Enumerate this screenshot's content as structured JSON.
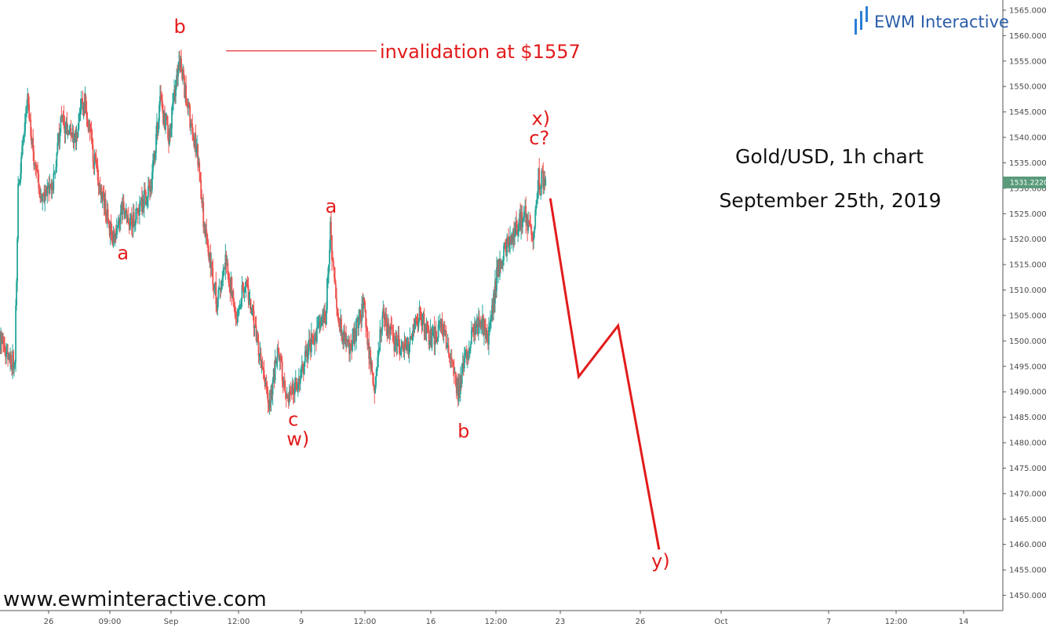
{
  "brand": {
    "logo_text": "EWM Interactive",
    "website": "www.ewminteractive.com"
  },
  "info": {
    "line1": "Gold/USD, 1h chart",
    "line2": "September 25th, 2019"
  },
  "colors": {
    "up": "#26a69a",
    "down": "#ef5350",
    "projection": "#e31b1b",
    "annotation": "#e31b1b",
    "price_tag": "#5a9a7a",
    "axis": "#555555"
  },
  "chart_data": {
    "type": "candlestick",
    "symbol": "Gold/USD",
    "timeframe": "1h",
    "ylim": [
      1447,
      1567
    ],
    "xlim": [
      "2019-08-23",
      "2019-10-15"
    ],
    "y_tick_labels": [
      "1565.0000",
      "1560.0000",
      "1555.0000",
      "1550.0000",
      "1545.0000",
      "1540.0000",
      "1535.0000",
      "1530.0000",
      "1525.0000",
      "1520.0000",
      "1515.0000",
      "1510.0000",
      "1505.0000",
      "1500.0000",
      "1495.0000",
      "1490.0000",
      "1485.0000",
      "1480.0000",
      "1475.0000",
      "1470.0000",
      "1465.0000",
      "1460.0000",
      "1455.0000",
      "1450.0000"
    ],
    "x_tick_labels": [
      "26",
      "09:00",
      "Sep",
      "12:00",
      "9",
      "12:00",
      "16",
      "12:00",
      "23",
      "26",
      "Oct",
      "7",
      "12:00",
      "14"
    ],
    "last_price": {
      "value": 1531.222,
      "label": "1531.2220"
    },
    "price_path": [
      [
        "2019-08-23 00:00",
        1500
      ],
      [
        "2019-08-23 12:00",
        1495
      ],
      [
        "2019-08-23 20:00",
        1497
      ],
      [
        "2019-08-24 00:00",
        1529
      ],
      [
        "2019-08-24 12:00",
        1548
      ],
      [
        "2019-08-24 20:00",
        1536
      ],
      [
        "2019-08-25 06:00",
        1528
      ],
      [
        "2019-08-25 18:00",
        1529
      ],
      [
        "2019-08-26 06:00",
        1543
      ],
      [
        "2019-08-27 00:00",
        1540
      ],
      [
        "2019-08-27 12:00",
        1548
      ],
      [
        "2019-08-28 00:00",
        1536
      ],
      [
        "2019-08-28 12:00",
        1528
      ],
      [
        "2019-08-29 00:00",
        1520
      ],
      [
        "2019-08-29 12:00",
        1526
      ],
      [
        "2019-08-30 00:00",
        1523
      ],
      [
        "2019-08-31 00:00",
        1530
      ],
      [
        "2019-08-31 12:00",
        1547
      ],
      [
        "2019-09-01 00:00",
        1540
      ],
      [
        "2019-09-01 12:00",
        1556
      ],
      [
        "2019-09-02 00:00",
        1545
      ],
      [
        "2019-09-02 12:00",
        1536
      ],
      [
        "2019-09-02 20:00",
        1522
      ],
      [
        "2019-09-03 12:00",
        1508
      ],
      [
        "2019-09-04 00:00",
        1516
      ],
      [
        "2019-09-04 12:00",
        1505
      ],
      [
        "2019-09-05 00:00",
        1512
      ],
      [
        "2019-09-05 18:00",
        1498
      ],
      [
        "2019-09-06 06:00",
        1488
      ],
      [
        "2019-09-06 18:00",
        1498
      ],
      [
        "2019-09-07 06:00",
        1488
      ],
      [
        "2019-09-07 20:00",
        1492
      ],
      [
        "2019-09-08 12:00",
        1500
      ],
      [
        "2019-09-09 06:00",
        1505
      ],
      [
        "2019-09-09 12:00",
        1522
      ],
      [
        "2019-09-09 20:00",
        1505
      ],
      [
        "2019-09-10 12:00",
        1498
      ],
      [
        "2019-09-11 06:00",
        1507
      ],
      [
        "2019-09-11 20:00",
        1490
      ],
      [
        "2019-09-12 06:00",
        1505
      ],
      [
        "2019-09-12 20:00",
        1500
      ],
      [
        "2019-09-13 12:00",
        1498
      ],
      [
        "2019-09-14 06:00",
        1505
      ],
      [
        "2019-09-14 20:00",
        1500
      ],
      [
        "2019-09-15 08:00",
        1503
      ],
      [
        "2019-09-15 16:00",
        1500
      ],
      [
        "2019-09-16 06:00",
        1490
      ],
      [
        "2019-09-16 20:00",
        1500
      ],
      [
        "2019-09-17 12:00",
        1504
      ],
      [
        "2019-09-17 20:00",
        1500
      ],
      [
        "2019-09-18 08:00",
        1514
      ],
      [
        "2019-09-19 00:00",
        1520
      ],
      [
        "2019-09-19 18:00",
        1525
      ],
      [
        "2019-09-20 06:00",
        1520
      ],
      [
        "2019-09-20 12:00",
        1532
      ],
      [
        "2019-09-20 20:00",
        1531.22
      ]
    ],
    "projection": [
      [
        "2019-09-21 02:00",
        1528
      ],
      [
        "2019-09-22 14:00",
        1493
      ],
      [
        "2019-09-24 16:00",
        1503
      ],
      [
        "2019-09-26 20:00",
        1459
      ]
    ],
    "invalidation": {
      "value": 1557,
      "label": "invalidation at $1557"
    },
    "wave_labels": [
      {
        "text": "b",
        "x": "2019-09-01 12:00",
        "y": 1560.5
      },
      {
        "text": "a",
        "x": "2019-08-29 12:00",
        "y": 1516
      },
      {
        "text": "c",
        "x": "2019-09-07 12:00",
        "y": 1483.3
      },
      {
        "text": "w)",
        "x": "2019-09-07 18:00",
        "y": 1479.5
      },
      {
        "text": "a",
        "x": "2019-09-09 12:00",
        "y": 1525.2
      },
      {
        "text": "b",
        "x": "2019-09-16 12:00",
        "y": 1481
      },
      {
        "text": "x)",
        "x": "2019-09-20 14:00",
        "y": 1542.5
      },
      {
        "text": "c?",
        "x": "2019-09-20 12:00",
        "y": 1538.6
      },
      {
        "text": "y)",
        "x": "2019-09-26 22:00",
        "y": 1455.5
      }
    ]
  }
}
